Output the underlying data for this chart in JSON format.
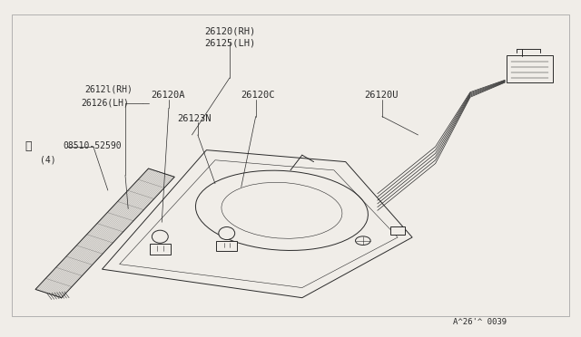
{
  "bg_color": "#f0ede8",
  "line_color": "#2a2a2a",
  "text_color": "#2a2a2a",
  "figsize": [
    6.4,
    3.72
  ],
  "dpi": 100,
  "label_26120_rh": "26120(RH)",
  "label_26125_lh": "26125(LH)",
  "label_26121_rh": "2612l(RH)",
  "label_26126_lh": "26126(LH)",
  "label_26120A": "26120A",
  "label_26120C": "26120C",
  "label_26120U": "26120U",
  "label_26123N": "26123N",
  "label_screw": "08510-52590",
  "label_screw_qty": "(4)",
  "watermark": "A^26'^ 0039"
}
